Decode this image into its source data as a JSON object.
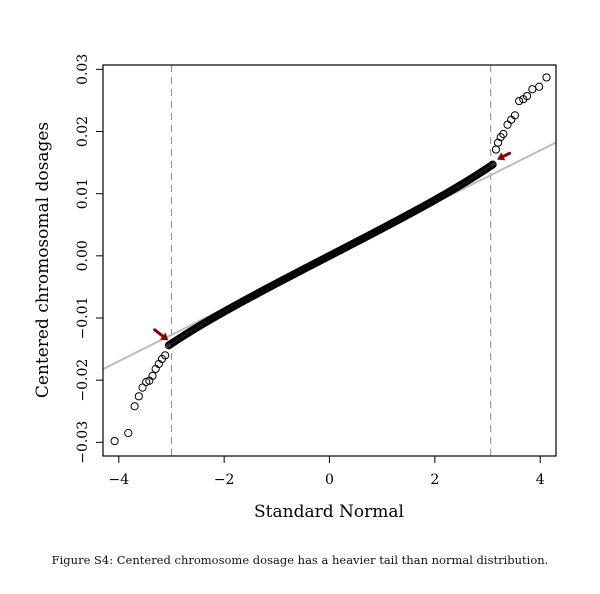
{
  "caption": "Figure S4: Centered chromosome dosage has a heavier tail than normal distribution.",
  "colors": {
    "points": "#000000",
    "reference_line": "#bcbcbc",
    "guide_lines": "#8a8a8a",
    "arrows": "#8b0000"
  },
  "chart_data": {
    "type": "scatter",
    "subtype": "qq-plot",
    "title": "",
    "xlabel": "Standard Normal",
    "ylabel": "Centered chromosomal dosages",
    "xlim": [
      -4.3,
      4.3
    ],
    "ylim": [
      -0.0322,
      0.0307
    ],
    "xticks": [
      -4,
      -2,
      0,
      2,
      4
    ],
    "xtick_labels": [
      "−4",
      "−2",
      "0",
      "2",
      "4"
    ],
    "yticks": [
      -0.03,
      -0.02,
      -0.01,
      0.0,
      0.01,
      0.02,
      0.03
    ],
    "ytick_labels": [
      "−0.03",
      "−0.02",
      "−0.01",
      "0.00",
      "0.01",
      "0.02",
      "0.03"
    ],
    "reference_line": {
      "intercept": 0.0,
      "slope": 0.00424
    },
    "vertical_guides": [
      -3.0,
      3.06
    ],
    "body": {
      "x_from": -3.05,
      "x_to": 3.1,
      "slope": 0.00424,
      "tail_gain": 0.0014
    },
    "outliers": [
      {
        "x": -4.08,
        "y": -0.0298
      },
      {
        "x": -3.82,
        "y": -0.0285
      },
      {
        "x": -3.7,
        "y": -0.0242
      },
      {
        "x": -3.62,
        "y": -0.0226
      },
      {
        "x": -3.55,
        "y": -0.0212
      },
      {
        "x": -3.48,
        "y": -0.0203
      },
      {
        "x": -3.42,
        "y": -0.0201
      },
      {
        "x": -3.36,
        "y": -0.0193
      },
      {
        "x": -3.3,
        "y": -0.0182
      },
      {
        "x": -3.24,
        "y": -0.0174
      },
      {
        "x": -3.18,
        "y": -0.0166
      },
      {
        "x": -3.12,
        "y": -0.016
      },
      {
        "x": 3.16,
        "y": 0.0171
      },
      {
        "x": 3.2,
        "y": 0.0182
      },
      {
        "x": 3.25,
        "y": 0.0191
      },
      {
        "x": 3.3,
        "y": 0.0196
      },
      {
        "x": 3.38,
        "y": 0.0211
      },
      {
        "x": 3.45,
        "y": 0.0219
      },
      {
        "x": 3.52,
        "y": 0.0226
      },
      {
        "x": 3.6,
        "y": 0.0249
      },
      {
        "x": 3.68,
        "y": 0.0252
      },
      {
        "x": 3.75,
        "y": 0.0257
      },
      {
        "x": 3.85,
        "y": 0.0268
      },
      {
        "x": 3.98,
        "y": 0.0272
      },
      {
        "x": 4.12,
        "y": 0.0287
      }
    ],
    "annotations": [
      {
        "type": "arrow",
        "tip_x": -3.06,
        "tip_y": -0.0136,
        "tail_x": -3.32,
        "tail_y": -0.0119
      },
      {
        "type": "arrow",
        "tip_x": 3.18,
        "tip_y": 0.0155,
        "tail_x": 3.42,
        "tail_y": 0.0165
      }
    ]
  }
}
